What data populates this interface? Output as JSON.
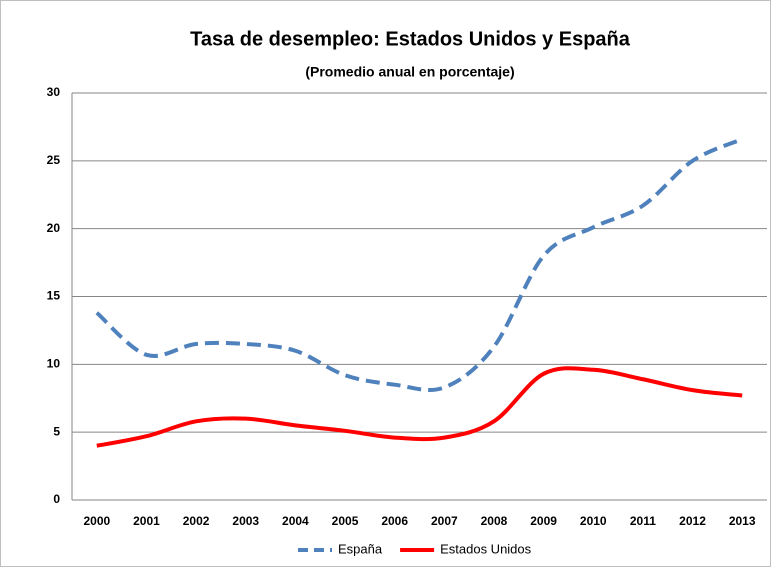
{
  "chart_data": {
    "type": "line",
    "title": "Tasa de desempleo: Estados Unidos y España",
    "subtitle": "(Promedio anual en porcentaje)",
    "categories": [
      "2000",
      "2001",
      "2002",
      "2003",
      "2004",
      "2005",
      "2006",
      "2007",
      "2008",
      "2009",
      "2010",
      "2011",
      "2012",
      "2013"
    ],
    "series": [
      {
        "name": "España",
        "color": "#4f81bd",
        "dashed": true,
        "values": [
          13.8,
          10.7,
          11.5,
          11.5,
          11.0,
          9.2,
          8.5,
          8.3,
          11.3,
          18.0,
          20.1,
          21.7,
          25.0,
          26.6
        ]
      },
      {
        "name": "Estados Unidos",
        "color": "#ff0000",
        "dashed": false,
        "values": [
          4.0,
          4.7,
          5.8,
          6.0,
          5.5,
          5.1,
          4.6,
          4.6,
          5.8,
          9.3,
          9.6,
          8.9,
          8.1,
          7.7
        ]
      }
    ],
    "ylim": [
      0,
      30
    ],
    "yticks": [
      0,
      5,
      10,
      15,
      20,
      25,
      30
    ],
    "grid": true,
    "legend": "bottom"
  }
}
